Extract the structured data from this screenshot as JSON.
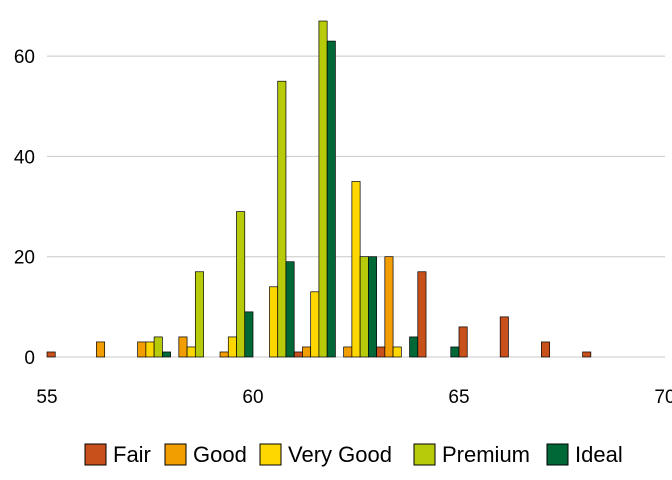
{
  "chart_data": {
    "type": "bar",
    "title": "",
    "xlabel": "",
    "ylabel": "",
    "xlim": [
      55,
      70
    ],
    "ylim": [
      -1,
      70
    ],
    "x_ticks": [
      55,
      60,
      65,
      70
    ],
    "x_tick_labels": [
      "55",
      "60",
      "65",
      "70"
    ],
    "y_ticks": [
      0,
      20,
      40,
      60
    ],
    "y_tick_labels": [
      "0",
      "20",
      "40",
      "60"
    ],
    "grid": "horizontal major lines",
    "legend_position": "bottom",
    "bin_width": 1,
    "bin_centers": [
      55.5,
      56.5,
      57.5,
      58.5,
      59.5,
      60.5,
      61.5,
      62.5,
      63.5,
      64.5,
      65.5,
      66.5,
      67.5,
      68.5,
      69.5
    ],
    "series": [
      {
        "name": "Fair",
        "color": "#C8511B",
        "values": [
          1,
          0,
          0,
          0,
          0,
          0,
          1,
          0,
          2,
          17,
          6,
          8,
          3,
          1,
          0
        ]
      },
      {
        "name": "Good",
        "color": "#F29D00",
        "values": [
          0,
          3,
          3,
          4,
          1,
          0,
          2,
          2,
          20,
          0,
          0,
          0,
          0,
          0,
          0
        ]
      },
      {
        "name": "Very Good",
        "color": "#FFD700",
        "values": [
          0,
          0,
          3,
          2,
          4,
          14,
          13,
          35,
          2,
          0,
          0,
          0,
          0,
          0,
          0
        ]
      },
      {
        "name": "Premium",
        "color": "#B8CB0B",
        "values": [
          0,
          0,
          4,
          17,
          29,
          55,
          67,
          20,
          0,
          0,
          0,
          0,
          0,
          0,
          0
        ]
      },
      {
        "name": "Ideal",
        "color": "#006837",
        "values": [
          0,
          0,
          1,
          0,
          9,
          19,
          63,
          20,
          4,
          2,
          0,
          0,
          0,
          0,
          0
        ]
      }
    ]
  }
}
